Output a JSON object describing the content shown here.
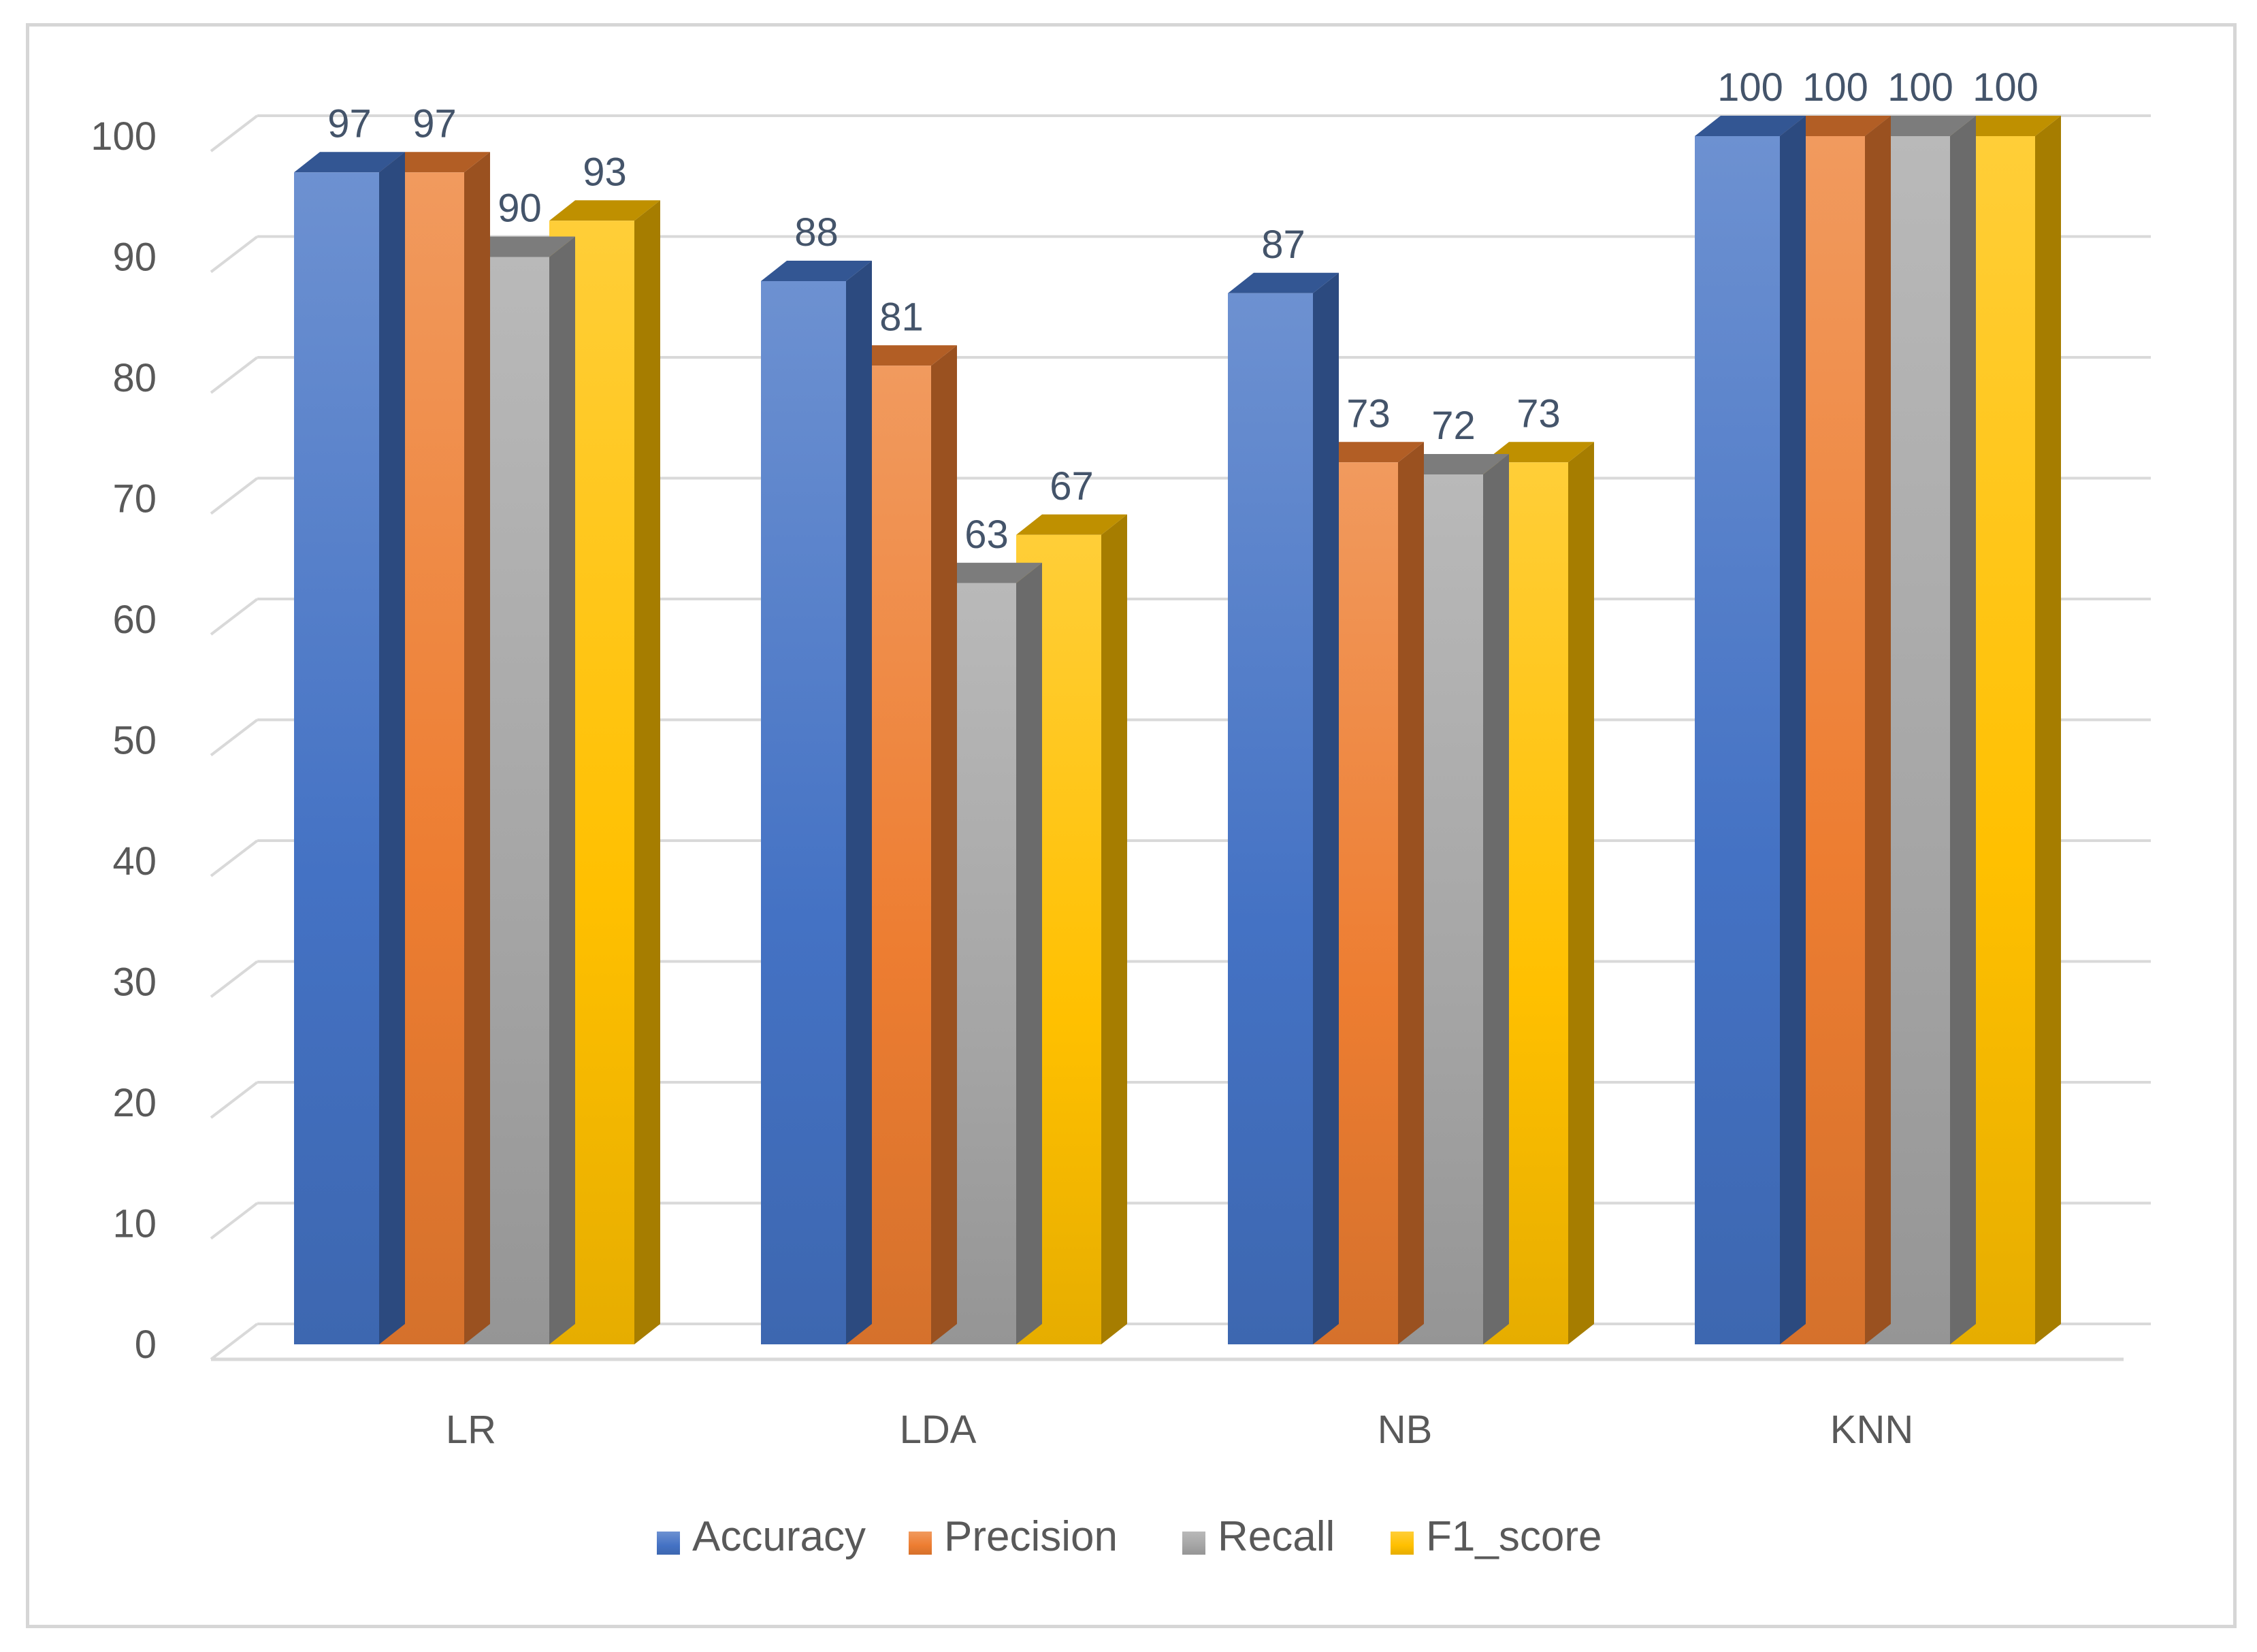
{
  "chart_data": {
    "type": "bar",
    "style": "3d-clustered-column",
    "title": "",
    "xlabel": "",
    "ylabel": "",
    "categories": [
      "LR",
      "LDA",
      "NB",
      "KNN"
    ],
    "ylim": [
      0,
      100
    ],
    "yticks": [
      0,
      10,
      20,
      30,
      40,
      50,
      60,
      70,
      80,
      90,
      100
    ],
    "grid": true,
    "legend_position": "bottom",
    "data_labels": true,
    "series": [
      {
        "name": "Accuracy",
        "values": [
          97,
          88,
          87,
          100
        ],
        "color": "#4472c4"
      },
      {
        "name": "Precision",
        "values": [
          97,
          81,
          73,
          100
        ],
        "color": "#ed7d31"
      },
      {
        "name": "Recall",
        "values": [
          90,
          63,
          72,
          100
        ],
        "color": "#a5a5a5"
      },
      {
        "name": "F1_score",
        "values": [
          93,
          67,
          73,
          100
        ],
        "color": "#ffc000"
      }
    ]
  }
}
